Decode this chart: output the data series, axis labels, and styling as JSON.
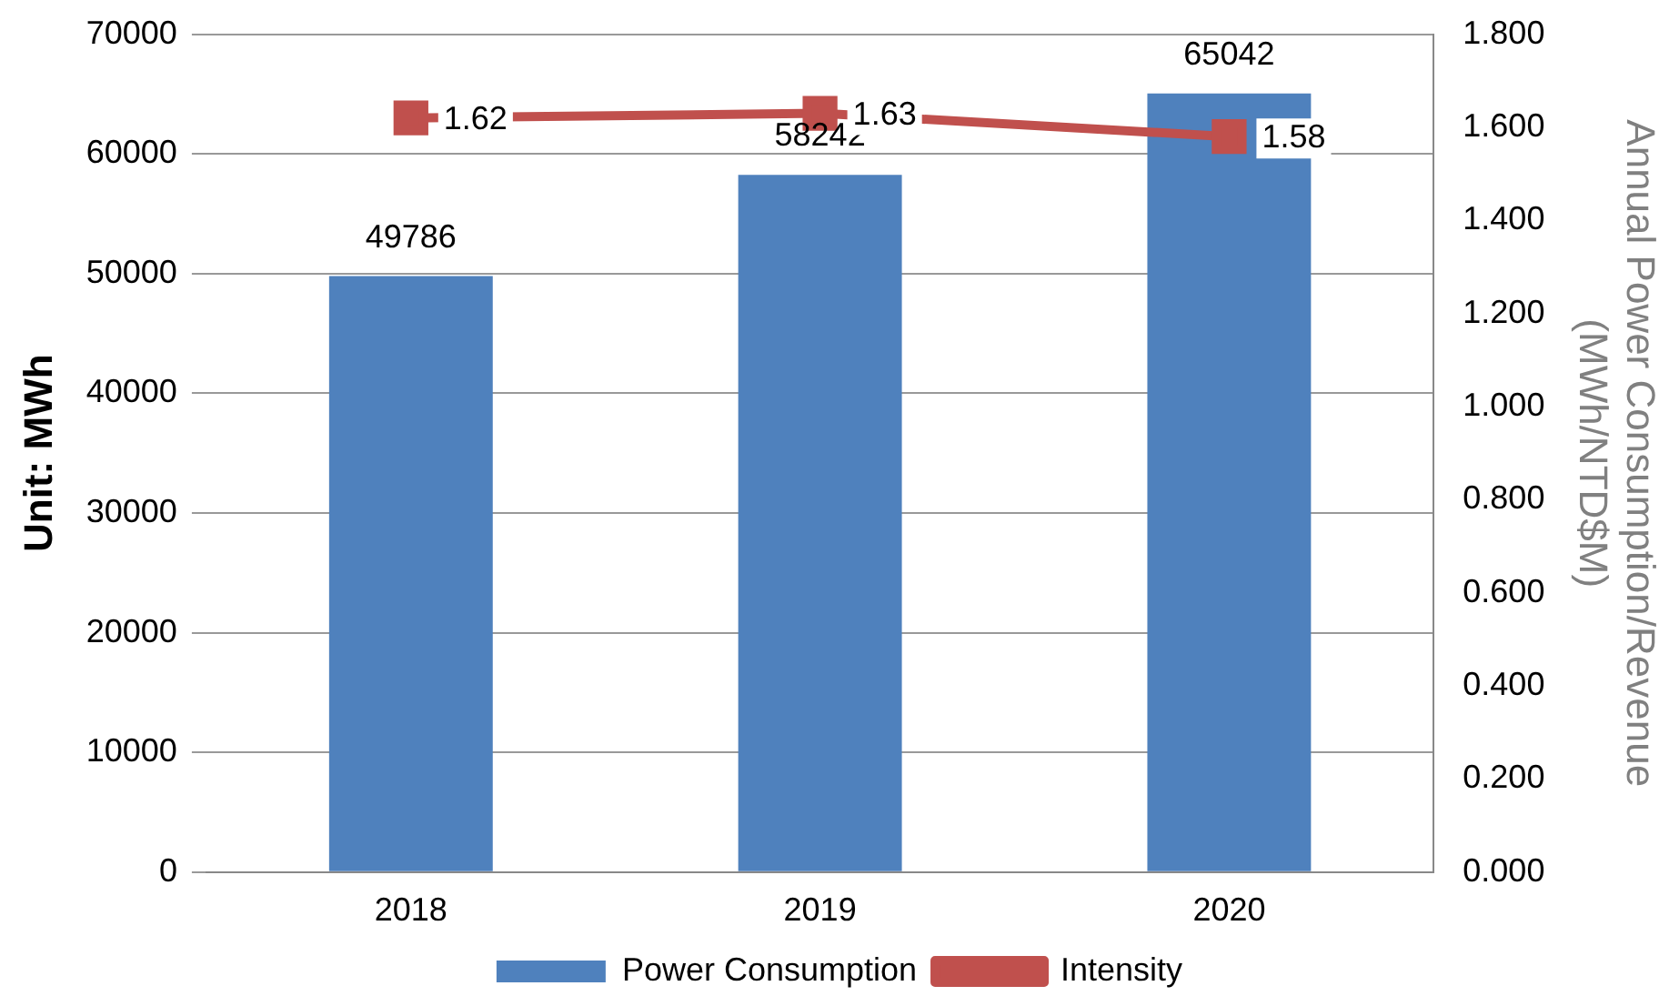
{
  "chart_data": {
    "type": "bar",
    "categories": [
      "2018",
      "2019",
      "2020"
    ],
    "series": [
      {
        "name": "Power Consumption",
        "color": "#4f81bd",
        "values": [
          49786,
          58242,
          65042
        ]
      },
      {
        "name": "Intensity",
        "type": "line",
        "axis": "y2",
        "color": "#c0504d",
        "values": [
          1.62,
          1.63,
          1.58
        ],
        "marker": "square"
      }
    ],
    "ylabel": "Unit: MWh",
    "y2label": "Annual Power Consumption/Revenue (MWh/NTD$M)",
    "ylim": [
      0,
      70000
    ],
    "yticks": [
      0,
      10000,
      20000,
      30000,
      40000,
      50000,
      60000,
      70000
    ],
    "y2lim": [
      0,
      1.8
    ],
    "y2ticks": [
      {
        "value": 0,
        "label": "0.000"
      },
      {
        "value": 0.2,
        "label": "0.200"
      },
      {
        "value": 0.4,
        "label": "0.400"
      },
      {
        "value": 0.6,
        "label": "0.600"
      },
      {
        "value": 0.8,
        "label": "0.800"
      },
      {
        "value": 1,
        "label": "1.000"
      },
      {
        "value": 1.2,
        "label": "1.200"
      },
      {
        "value": 1.4,
        "label": "1.400"
      },
      {
        "value": 1.6,
        "label": "1.600"
      },
      {
        "value": 1.8,
        "label": "1.800"
      }
    ],
    "grid": "y",
    "legend": "bottom",
    "data_labels": true
  }
}
